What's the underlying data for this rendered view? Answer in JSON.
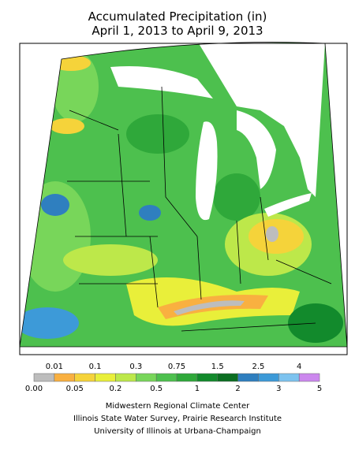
{
  "title": [
    "Accumulated Precipitation (in)",
    "April 1, 2013 to April 9, 2013"
  ],
  "legend": {
    "top_labels": [
      "0.01",
      "0.1",
      "0.3",
      "0.75",
      "1.5",
      "2.5",
      "4"
    ],
    "bottom_labels": [
      "0.00",
      "0.05",
      "0.2",
      "0.5",
      "1",
      "2",
      "3",
      "5"
    ],
    "colors": [
      "#bdbdbd",
      "#f9b040",
      "#f5d33a",
      "#e9ef3a",
      "#bde84a",
      "#78d65a",
      "#4dc04e",
      "#2fa83a",
      "#128a2c",
      "#0b6e22",
      "#2f7fbf",
      "#3d9ad8",
      "#7dc3ef",
      "#cc88ee"
    ]
  },
  "credits": [
    "Midwestern Regional Climate Center",
    "Illinois State Water Survey, Prairie Research Institute",
    "University of Illinois at Urbana-Champaign"
  ]
}
